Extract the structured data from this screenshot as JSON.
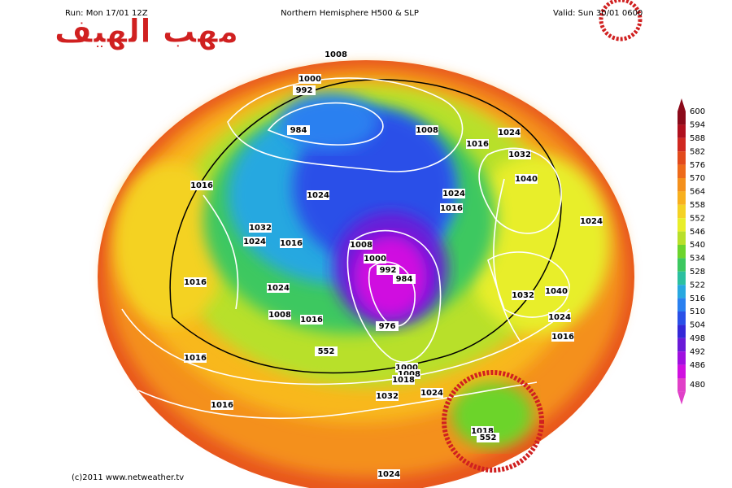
{
  "header": {
    "run": "Run: Mon 17/01 12Z",
    "title": "Northern Hemisphere H500 & SLP",
    "valid": "Valid: Sun 30/01 0600"
  },
  "watermark": "مهب الهيف",
  "copyright": "(c)2011 www.netweather.tv",
  "scale": {
    "labels": [
      600,
      594,
      588,
      582,
      576,
      570,
      564,
      558,
      552,
      546,
      540,
      534,
      528,
      522,
      516,
      510,
      504,
      498,
      492,
      486,
      480
    ],
    "colors": [
      "#8b0a1a",
      "#b0101e",
      "#d02820",
      "#e24a1c",
      "#ee6a1a",
      "#f4901c",
      "#f8b01e",
      "#f4d224",
      "#e8ee2a",
      "#b8e02a",
      "#6cd42c",
      "#3cc860",
      "#2cc0a0",
      "#28a8e0",
      "#2a80f0",
      "#2a50e8",
      "#3428d8",
      "#6a1ad8",
      "#a010e0",
      "#d010e0",
      "#e040c8"
    ]
  },
  "pressure_labels": [
    1008,
    1000,
    992,
    984,
    1008,
    1024,
    1016,
    1032,
    1040,
    1016,
    1024,
    1024,
    1016,
    1024,
    1032,
    1024,
    1016,
    1008,
    1000,
    992,
    984,
    1016,
    1024,
    1032,
    1040,
    1008,
    1016,
    976,
    1024,
    1016,
    1016,
    552,
    1000,
    1008,
    1018,
    1032,
    1024,
    1016,
    1018,
    552,
    1024
  ]
}
